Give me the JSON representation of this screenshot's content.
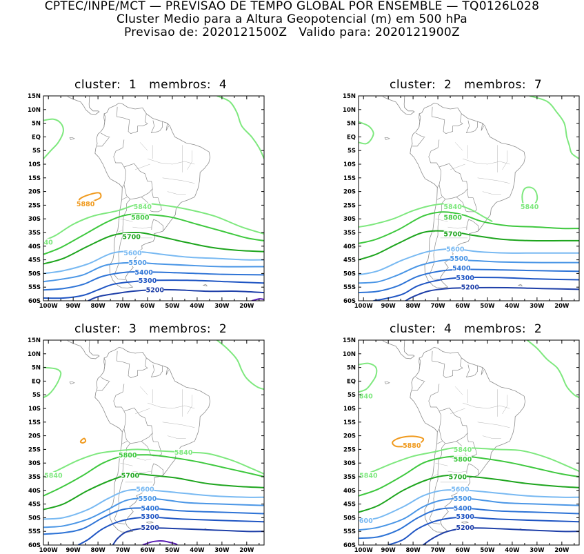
{
  "header": {
    "line1": "CPTEC/INPE/MCT — PREVISAO DE TEMPO GLOBAL POR ENSEMBLE — TQ0126L028",
    "line2": "Cluster Medio para a Altura Geopotencial (m) em 500 hPa",
    "line3": "Previsao de: 2020121500Z   Valido para: 2020121900Z"
  },
  "axes": {
    "lat_labels": [
      "15N",
      "10N",
      "5N",
      "EQ",
      "5S",
      "10S",
      "15S",
      "20S",
      "25S",
      "30S",
      "35S",
      "40S",
      "45S",
      "50S",
      "55S",
      "60S"
    ],
    "lon_labels": [
      "100W",
      "90W",
      "80W",
      "70W",
      "60W",
      "50W",
      "40W",
      "30W",
      "20W"
    ]
  },
  "contour_colors": {
    "5880": "#f09a1e",
    "5840": "#7ee87e",
    "5800": "#3ec83e",
    "5700": "#1ea51e",
    "5600": "#78b9f2",
    "5500": "#4a96e6",
    "5400": "#2d73d6",
    "5300": "#1f55c3",
    "5200": "#1e3fa8",
    "5100": "#5a1eb4"
  },
  "panels": [
    {
      "title": "cluster:  1   membros:  4",
      "labels": [
        {
          "text": "5880",
          "lon": -85,
          "lat": -24.5,
          "level": "5880"
        },
        {
          "text": "5840",
          "lon": -62,
          "lat": -25.5,
          "level": "5840"
        },
        {
          "text": "5800",
          "lon": -63,
          "lat": -29.5,
          "level": "5800"
        },
        {
          "text": "5700",
          "lon": -66.5,
          "lat": -36.5,
          "level": "5700"
        },
        {
          "text": "5600",
          "lon": -66,
          "lat": -42.5,
          "level": "5600"
        },
        {
          "text": "5500",
          "lon": -64,
          "lat": -46,
          "level": "5500"
        },
        {
          "text": "5400",
          "lon": -61.5,
          "lat": -49.5,
          "level": "5400"
        },
        {
          "text": "5300",
          "lon": -60,
          "lat": -52.5,
          "level": "5300"
        },
        {
          "text": "5200",
          "lon": -57,
          "lat": -56,
          "level": "5200"
        },
        {
          "text": "40",
          "lon": -100,
          "lat": -38.5,
          "level": "5840"
        }
      ]
    },
    {
      "title": "cluster:  2   membros:  7",
      "labels": [
        {
          "text": "5840",
          "lon": -64,
          "lat": -25.5,
          "level": "5840"
        },
        {
          "text": "5840",
          "lon": -33,
          "lat": -25.5,
          "level": "5840"
        },
        {
          "text": "5800",
          "lon": -64,
          "lat": -29.5,
          "level": "5800"
        },
        {
          "text": "5700",
          "lon": -64,
          "lat": -35.5,
          "level": "5700"
        },
        {
          "text": "5600",
          "lon": -63,
          "lat": -41,
          "level": "5600"
        },
        {
          "text": "5500",
          "lon": -61.5,
          "lat": -44.5,
          "level": "5500"
        },
        {
          "text": "5400",
          "lon": -60.5,
          "lat": -48,
          "level": "5400"
        },
        {
          "text": "5300",
          "lon": -59,
          "lat": -51.5,
          "level": "5300"
        },
        {
          "text": "5200",
          "lon": -57,
          "lat": -55,
          "level": "5200"
        }
      ]
    },
    {
      "title": "cluster:  3   membros:  2",
      "labels": [
        {
          "text": "5840",
          "lon": -98,
          "lat": -34.5,
          "level": "5840"
        },
        {
          "text": "5840",
          "lon": -45.5,
          "lat": -26,
          "level": "5840"
        },
        {
          "text": "5800",
          "lon": -68,
          "lat": -27,
          "level": "5800"
        },
        {
          "text": "5700",
          "lon": -67,
          "lat": -34.5,
          "level": "5700"
        },
        {
          "text": "5600",
          "lon": -61,
          "lat": -39.5,
          "level": "5600"
        },
        {
          "text": "5500",
          "lon": -60,
          "lat": -43,
          "level": "5500"
        },
        {
          "text": "5400",
          "lon": -59,
          "lat": -46.5,
          "level": "5400"
        },
        {
          "text": "5300",
          "lon": -59,
          "lat": -49.5,
          "level": "5300"
        },
        {
          "text": "5200",
          "lon": -59,
          "lat": -53.5,
          "level": "5200"
        }
      ]
    },
    {
      "title": "cluster:  4   membros:  2",
      "labels": [
        {
          "text": "840",
          "lon": -99,
          "lat": -5.5,
          "level": "5840"
        },
        {
          "text": "5880",
          "lon": -80.5,
          "lat": -23.5,
          "level": "5880"
        },
        {
          "text": "5840",
          "lon": -98,
          "lat": -34.5,
          "level": "5840"
        },
        {
          "text": "5840",
          "lon": -60,
          "lat": -25,
          "level": "5840"
        },
        {
          "text": "5800",
          "lon": -60,
          "lat": -28.5,
          "level": "5800"
        },
        {
          "text": "5700",
          "lon": -62,
          "lat": -35,
          "level": "5700"
        },
        {
          "text": "5600",
          "lon": -61,
          "lat": -39.5,
          "level": "5600"
        },
        {
          "text": "5500",
          "lon": -60,
          "lat": -43,
          "level": "5500"
        },
        {
          "text": "5400",
          "lon": -60,
          "lat": -46.5,
          "level": "5400"
        },
        {
          "text": "5300",
          "lon": -59,
          "lat": -49.5,
          "level": "5300"
        },
        {
          "text": "5200",
          "lon": -59,
          "lat": -53.5,
          "level": "5200"
        },
        {
          "text": "600",
          "lon": -99,
          "lat": -51,
          "level": "5600"
        }
      ]
    }
  ]
}
